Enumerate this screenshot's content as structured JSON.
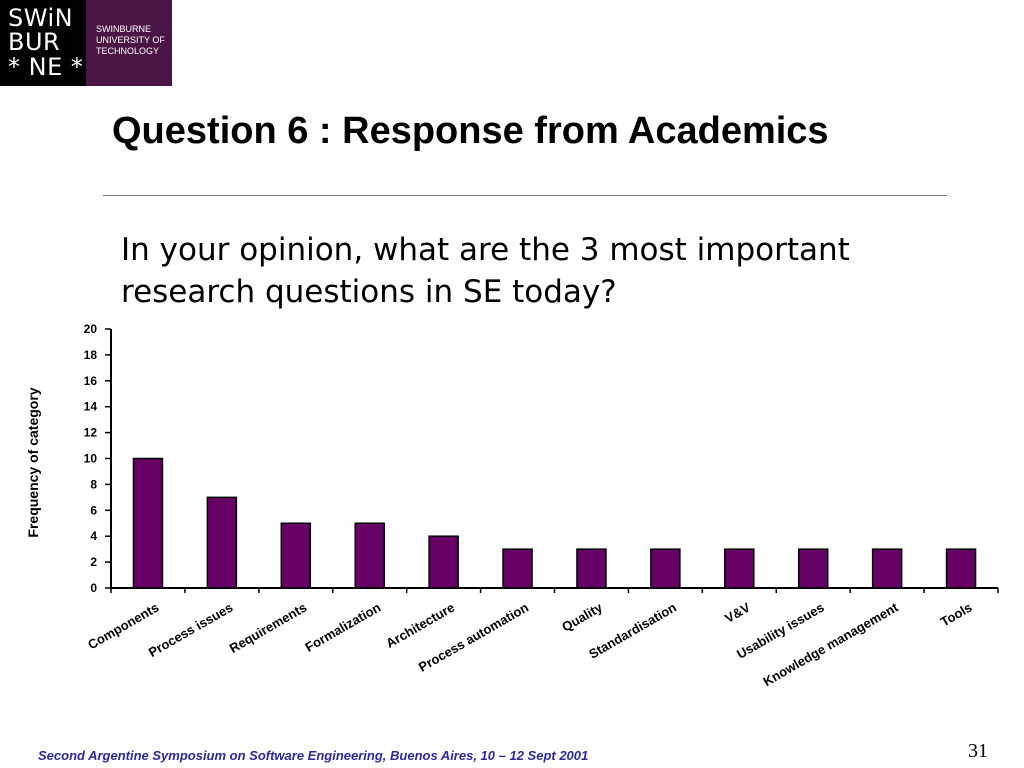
{
  "logo": {
    "mark_lines": [
      "SWiN",
      "BUR",
      "* NE *"
    ],
    "institution_lines": [
      "SWINBURNE",
      "UNIVERSITY OF",
      "TECHNOLOGY"
    ]
  },
  "slide": {
    "title": "Question 6 : Response from Academics",
    "question_lines": [
      "In your opinion, what are the 3 most important",
      "research questions in SE today?"
    ],
    "footer": "Second Argentine Symposium on Software Engineering, Buenos Aires, 10 – 12 Sept 2001",
    "page_number": "31"
  },
  "colors": {
    "bar": "#660066",
    "logo_background": "#4a1544",
    "footer_text": "#2a2a9a"
  },
  "chart_data": {
    "type": "bar",
    "categories": [
      "Components",
      "Process issues",
      "Requirements",
      "Formalization",
      "Architecture",
      "Process automation",
      "Quality",
      "Standardisation",
      "V&V",
      "Usability issues",
      "Knowledge management",
      "Tools"
    ],
    "values": [
      10,
      7,
      5,
      5,
      4,
      3,
      3,
      3,
      3,
      3,
      3,
      3
    ],
    "ylabel": "Frequency of category",
    "ylim": [
      0,
      20
    ],
    "yticks": [
      0,
      2,
      4,
      6,
      8,
      10,
      12,
      14,
      16,
      18,
      20
    ],
    "grid": false,
    "legend": "none"
  }
}
